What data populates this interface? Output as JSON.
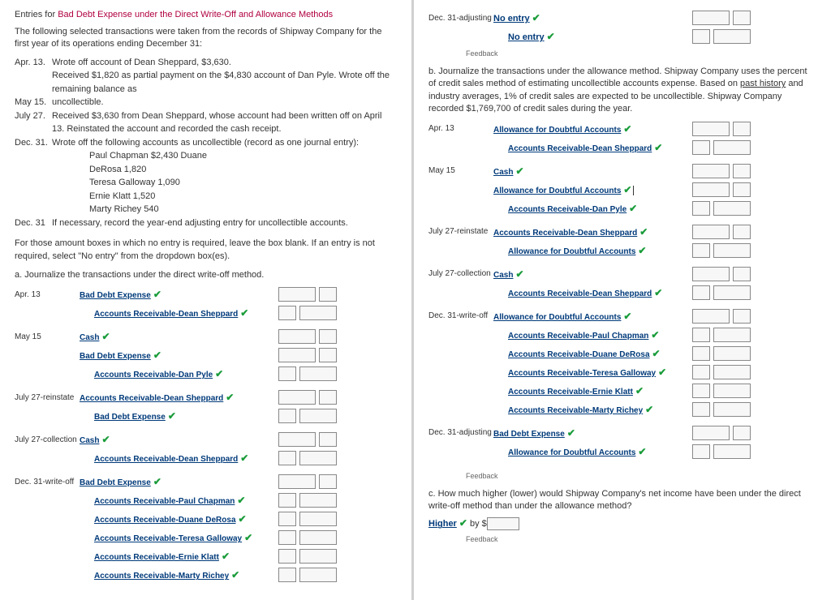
{
  "title_pre": "Entries for ",
  "title_hl": "Bad Debt Expense under the Direct Write-Off and Allowance Methods",
  "intro": "The following selected transactions were taken from the records of Shipway Company for the first year of its operations ending December 31:",
  "txns": [
    {
      "date": "Apr. 13.",
      "text": "Wrote off account of Dean Sheppard, $3,630."
    },
    {
      "date": "May 15.",
      "text": "Received $1,820 as partial payment on the $4,830 account of Dan Pyle. Wrote off the remaining balance as uncollectible.",
      "wrap": true
    },
    {
      "date": "July 27.",
      "text": "Received $3,630 from Dean Sheppard, whose account had been written off on April 13. Reinstated the account and recorded the cash receipt."
    },
    {
      "date": "Dec. 31.",
      "text": "Wrote off the following accounts as uncollectible (record as one journal entry):"
    },
    {
      "date": "Dec. 31",
      "text": "If necessary, record the year-end adjusting entry for uncollectible accounts."
    }
  ],
  "writeoff_list": [
    "Paul Chapman $2,430 Duane",
    "DeRosa 1,820",
    "Teresa Galloway 1,090",
    "Ernie Klatt        1,520",
    "Marty Richey       540"
  ],
  "box_instr": "For those amount boxes in which no entry is required, leave the box blank. If an entry is not required, select \"No entry\" from the dropdown box(es).",
  "a_label": "a.  Journalize the transactions under the direct write-off method.",
  "b_label": "b.  Journalize the transactions under the allowance method. Shipway Company uses the percent of credit sales method of estimating uncollectible accounts expense. Based on ",
  "b_label_u": "past history",
  "b_label_post": " and industry averages, 1% of credit sales are expected to be uncollectible. Shipway Company recorded $1,769,700 of credit sales during the year.",
  "c_label": "c.  How much higher (lower) would Shipway Company's net income have been under the direct write-off method than under the allowance method?",
  "no_entry": "No entry",
  "feedback": "Feedback",
  "higher": "Higher",
  "by": " by $",
  "left_entries": [
    {
      "date": "Apr. 13",
      "rows": [
        {
          "acct": "Bad Debt Expense",
          "cells": [
            "w",
            "n"
          ]
        },
        {
          "acct": "Accounts Receivable-Dean Sheppard",
          "shift": true,
          "cells": [
            "n",
            "w"
          ]
        }
      ]
    },
    {
      "date": "May 15",
      "rows": [
        {
          "acct": "Cash",
          "cells": [
            "w",
            "n"
          ]
        },
        {
          "acct": "Bad Debt Expense",
          "cells": [
            "w",
            "n"
          ]
        },
        {
          "acct": "Accounts Receivable-Dan Pyle",
          "shift": true,
          "cells": [
            "n",
            "w"
          ]
        }
      ]
    },
    {
      "date": "July 27-reinstate",
      "rows": [
        {
          "acct": "Accounts Receivable-Dean Sheppard",
          "cells": [
            "w",
            "n"
          ]
        },
        {
          "acct": "Bad Debt Expense",
          "shift": true,
          "cells": [
            "n",
            "w"
          ]
        }
      ]
    },
    {
      "date": "July 27-collection",
      "rows": [
        {
          "acct": "Cash",
          "cells": [
            "w",
            "n"
          ]
        },
        {
          "acct": "Accounts Receivable-Dean Sheppard",
          "shift": true,
          "cells": [
            "n",
            "w"
          ]
        }
      ]
    },
    {
      "date": "Dec. 31-write-off",
      "rows": [
        {
          "acct": "Bad Debt Expense",
          "cells": [
            "w",
            "n"
          ]
        },
        {
          "acct": "Accounts Receivable-Paul Chapman",
          "shift": true,
          "cells": [
            "n",
            "w"
          ]
        },
        {
          "acct": "Accounts Receivable-Duane DeRosa",
          "shift": true,
          "cells": [
            "n",
            "w"
          ]
        },
        {
          "acct": "Accounts Receivable-Teresa Galloway",
          "shift": true,
          "cells": [
            "n",
            "w"
          ]
        },
        {
          "acct": "Accounts Receivable-Ernie Klatt",
          "shift": true,
          "cells": [
            "n",
            "w"
          ]
        },
        {
          "acct": "Accounts Receivable-Marty Richey",
          "shift": true,
          "cells": [
            "n",
            "w"
          ]
        }
      ]
    }
  ],
  "right_top": {
    "date": "Dec. 31-adjusting",
    "rows": [
      {
        "acct": "No entry",
        "plain": true,
        "cells": [
          "w",
          "n"
        ]
      },
      {
        "acct": "No entry",
        "plain": true,
        "shift": true,
        "cells": [
          "n",
          "w"
        ]
      }
    ]
  },
  "right_entries": [
    {
      "date": "Apr. 13",
      "rows": [
        {
          "acct": "Allowance for Doubtful Accounts",
          "cells": [
            "w",
            "n"
          ]
        },
        {
          "acct": "Accounts Receivable-Dean Sheppard",
          "shift": true,
          "cells": [
            "n",
            "w"
          ]
        }
      ]
    },
    {
      "date": "May 15",
      "rows": [
        {
          "acct": "Cash",
          "cells": [
            "w",
            "n"
          ]
        },
        {
          "acct": "Allowance for Doubtful Accounts",
          "cursor": true,
          "cells": [
            "w",
            "n"
          ]
        },
        {
          "acct": "Accounts Receivable-Dan Pyle",
          "shift": true,
          "cells": [
            "n",
            "w"
          ]
        }
      ]
    },
    {
      "date": "July 27-reinstate",
      "rows": [
        {
          "acct": "Accounts Receivable-Dean Sheppard",
          "cells": [
            "w",
            "n"
          ]
        },
        {
          "acct": "Allowance for Doubtful Accounts",
          "shift": true,
          "cells": [
            "n",
            "w"
          ]
        }
      ]
    },
    {
      "date": "July 27-collection",
      "rows": [
        {
          "acct": "Cash",
          "cells": [
            "w",
            "n"
          ]
        },
        {
          "acct": "Accounts Receivable-Dean Sheppard",
          "shift": true,
          "cells": [
            "n",
            "w"
          ]
        }
      ]
    },
    {
      "date": "Dec. 31-write-off",
      "rows": [
        {
          "acct": "Allowance for Doubtful Accounts",
          "cells": [
            "w",
            "n"
          ]
        },
        {
          "acct": "Accounts Receivable-Paul Chapman",
          "shift": true,
          "cells": [
            "n",
            "w"
          ]
        },
        {
          "acct": "Accounts Receivable-Duane DeRosa",
          "shift": true,
          "cells": [
            "n",
            "w"
          ]
        },
        {
          "acct": "Accounts Receivable-Teresa Galloway",
          "shift": true,
          "cells": [
            "n",
            "w"
          ]
        },
        {
          "acct": "Accounts Receivable-Ernie Klatt",
          "shift": true,
          "cells": [
            "n",
            "w"
          ]
        },
        {
          "acct": "Accounts Receivable-Marty Richey",
          "shift": true,
          "cells": [
            "n",
            "w"
          ]
        }
      ]
    },
    {
      "date": "Dec. 31-adjusting",
      "rows": [
        {
          "acct": "Bad Debt Expense",
          "cells": [
            "w",
            "n"
          ]
        },
        {
          "acct": "Allowance for Doubtful Accounts",
          "shift": true,
          "cells": [
            "n",
            "w"
          ]
        }
      ]
    }
  ]
}
